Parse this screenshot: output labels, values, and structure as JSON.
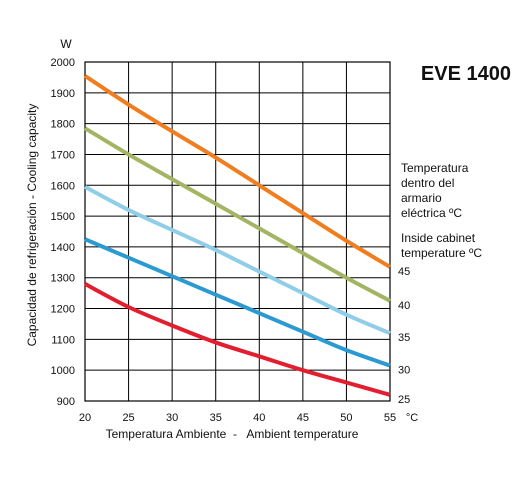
{
  "chart_data": {
    "type": "line",
    "title": "EVE 1400",
    "y_unit": "W",
    "x_unit": "°C",
    "ylabel": "Capacidad de refrigeración - Cooling capacity",
    "xlabel": "Temperatura Ambiente  -   Ambient temperature",
    "legend_title_lines": [
      "Temperatura",
      "dentro del",
      "armario",
      "eléctrica ºC"
    ],
    "legend_subtitle_lines": [
      "Inside cabinet",
      "temperature ºC"
    ],
    "xlim": [
      20,
      55
    ],
    "ylim": [
      900,
      2000
    ],
    "x_ticks": [
      20,
      25,
      30,
      35,
      40,
      45,
      50,
      55
    ],
    "y_ticks": [
      900,
      1000,
      1100,
      1200,
      1300,
      1400,
      1500,
      1600,
      1700,
      1800,
      1900,
      2000
    ],
    "grid": true,
    "series": [
      {
        "name": "45",
        "color": "#f07d1e",
        "x": [
          20,
          25,
          30,
          35,
          40,
          45,
          50,
          55
        ],
        "y": [
          1955,
          1862,
          1775,
          1690,
          1600,
          1510,
          1420,
          1335
        ]
      },
      {
        "name": "40",
        "color": "#a3b563",
        "x": [
          20,
          25,
          30,
          35,
          40,
          45,
          50,
          55
        ],
        "y": [
          1785,
          1700,
          1620,
          1540,
          1460,
          1380,
          1300,
          1225
        ]
      },
      {
        "name": "35",
        "color": "#8fcde8",
        "x": [
          20,
          25,
          30,
          35,
          40,
          45,
          50,
          55
        ],
        "y": [
          1595,
          1520,
          1455,
          1390,
          1320,
          1250,
          1180,
          1120
        ]
      },
      {
        "name": "30",
        "color": "#2b9ad3",
        "x": [
          20,
          25,
          30,
          35,
          40,
          45,
          50,
          55
        ],
        "y": [
          1425,
          1365,
          1305,
          1245,
          1185,
          1125,
          1065,
          1015
        ]
      },
      {
        "name": "25",
        "color": "#e21e2f",
        "x": [
          20,
          25,
          30,
          35,
          40,
          45,
          50,
          55
        ],
        "y": [
          1280,
          1205,
          1145,
          1090,
          1045,
          1000,
          960,
          920
        ]
      }
    ]
  }
}
